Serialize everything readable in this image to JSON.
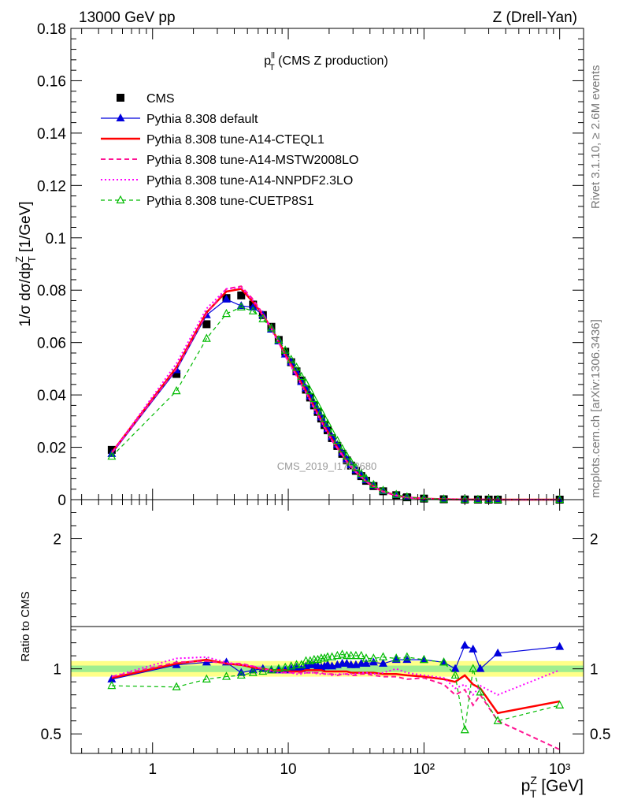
{
  "header": {
    "left": "13000 GeV pp",
    "right": "Z (Drell-Yan)"
  },
  "side_labels": {
    "rivet": "Rivet 3.1.10, ≥ 2.6M events",
    "mcplots": "mcplots.cern.ch [arXiv:1306.3436]"
  },
  "watermark": "CMS_2019_I1753680",
  "chart_data": [
    {
      "type": "line",
      "panel": "main",
      "title_main": "p",
      "title_sup": "ll",
      "title_sub": "T",
      "title_rest": " (CMS Z production)",
      "xscale": "log",
      "xlim": [
        0.25,
        1500
      ],
      "ylim": [
        0,
        0.18
      ],
      "ylabel_prefix": "1/σ dσ/dp",
      "ylabel_sup": "Z",
      "ylabel_sub": "T",
      "ylabel_suffix": " [1/GeV]",
      "yticks": [
        "0",
        "0.02",
        "0.04",
        "0.06",
        "0.08",
        "0.1",
        "0.12",
        "0.14",
        "0.16",
        "0.18"
      ],
      "legend_position": "top-left",
      "x": [
        0.5,
        1.5,
        2.5,
        3.5,
        4.5,
        5.5,
        6.5,
        7.5,
        8.5,
        9.5,
        10.5,
        11.5,
        12.5,
        13.5,
        14.5,
        15.5,
        16.5,
        17.5,
        18.5,
        19.5,
        21,
        23,
        25,
        27,
        29,
        31.5,
        34.5,
        37.5,
        42.5,
        50,
        62.5,
        75,
        100,
        140,
        200,
        250,
        300,
        350,
        1000
      ],
      "series": [
        {
          "name": "CMS",
          "style": "cms",
          "color": "#000000",
          "values": [
            0.019,
            0.048,
            0.067,
            0.077,
            0.078,
            0.0745,
            0.0705,
            0.066,
            0.061,
            0.0565,
            0.0525,
            0.049,
            0.0455,
            0.042,
            0.039,
            0.036,
            0.0335,
            0.031,
            0.0285,
            0.0265,
            0.0235,
            0.0205,
            0.0175,
            0.015,
            0.013,
            0.011,
            0.009,
            0.0072,
            0.0052,
            0.0032,
            0.0017,
            0.0009,
            0.0004,
            0.00015,
            6e-05,
            4e-05,
            2e-05,
            1e-05,
            5e-06
          ]
        },
        {
          "name": "Pythia 8.308 default",
          "style": "default",
          "color": "#0000dd",
          "values": [
            0.0175,
            0.0495,
            0.0705,
            0.0765,
            0.074,
            0.0735,
            0.0705,
            0.065,
            0.0605,
            0.0555,
            0.0525,
            0.049,
            0.045,
            0.0425,
            0.0395,
            0.0365,
            0.034,
            0.0315,
            0.029,
            0.027,
            0.024,
            0.021,
            0.018,
            0.0155,
            0.0133,
            0.0113,
            0.0093,
            0.0075,
            0.0054,
            0.0033,
            0.0018,
            0.00095,
            0.00042,
            0.00016,
            7e-05,
            4e-05,
            2e-05,
            1e-05,
            6e-06
          ]
        },
        {
          "name": "Pythia 8.308 tune-A14-CTEQL1",
          "style": "cteq",
          "color": "#ff0000",
          "values": [
            0.018,
            0.0505,
            0.0715,
            0.0795,
            0.0805,
            0.0755,
            0.0705,
            0.0655,
            0.0605,
            0.0555,
            0.0515,
            0.048,
            0.0445,
            0.0415,
            0.0385,
            0.0355,
            0.033,
            0.0305,
            0.028,
            0.026,
            0.023,
            0.02,
            0.0172,
            0.0147,
            0.0127,
            0.0107,
            0.0088,
            0.007,
            0.005,
            0.0031,
            0.0016,
            0.00085,
            0.00037,
            0.00014,
            5e-05,
            4e-05,
            1.7e-05,
            7e-06,
            4e-06
          ]
        },
        {
          "name": "Pythia 8.308 tune-A14-MSTW2008LO",
          "style": "mstw",
          "color": "#ff1493",
          "values": [
            0.0178,
            0.05,
            0.071,
            0.0805,
            0.0815,
            0.0765,
            0.071,
            0.0655,
            0.06,
            0.055,
            0.051,
            0.0475,
            0.044,
            0.041,
            0.038,
            0.035,
            0.0325,
            0.03,
            0.0275,
            0.0255,
            0.0225,
            0.0195,
            0.017,
            0.0145,
            0.0125,
            0.0105,
            0.0086,
            0.0069,
            0.0049,
            0.003,
            0.0016,
            0.00082,
            0.00036,
            0.00013,
            5e-05,
            3.5e-05,
            1.5e-05,
            6e-06,
            3e-06
          ]
        },
        {
          "name": "Pythia 8.308 tune-A14-NNPDF2.3LO",
          "style": "nnpdf",
          "color": "#ff00ff",
          "values": [
            0.0178,
            0.052,
            0.073,
            0.0805,
            0.081,
            0.076,
            0.0705,
            0.065,
            0.0598,
            0.0548,
            0.0508,
            0.0472,
            0.0437,
            0.0408,
            0.0378,
            0.0348,
            0.0322,
            0.0298,
            0.0274,
            0.0254,
            0.0224,
            0.0196,
            0.0169,
            0.0145,
            0.0125,
            0.0106,
            0.0087,
            0.007,
            0.005,
            0.0031,
            0.0017,
            0.00087,
            0.00038,
            0.00014,
            5e-05,
            3.5e-05,
            1.6e-05,
            8e-06,
            5e-06
          ]
        },
        {
          "name": "Pythia 8.308 tune-CUETP8S1",
          "style": "cuetp",
          "color": "#00bb00",
          "values": [
            0.0165,
            0.0415,
            0.0615,
            0.071,
            0.0735,
            0.072,
            0.069,
            0.0655,
            0.061,
            0.057,
            0.0535,
            0.0505,
            0.047,
            0.0445,
            0.0415,
            0.0385,
            0.036,
            0.0335,
            0.031,
            0.029,
            0.0257,
            0.0225,
            0.0194,
            0.0166,
            0.0143,
            0.0121,
            0.0099,
            0.008,
            0.0057,
            0.0035,
            0.0019,
            0.00098,
            0.00043,
            0.00016,
            6e-05,
            4e-05,
            1.5e-05,
            6e-06,
            4e-06
          ]
        }
      ]
    },
    {
      "type": "line",
      "panel": "ratio",
      "ylabel": "Ratio to CMS",
      "xlabel_main": "p",
      "xlabel_sup": "Z",
      "xlabel_sub": "T",
      "xlabel_suffix": " [GeV]",
      "xscale": "log",
      "xlim": [
        0.25,
        1500
      ],
      "ylim": [
        0.35,
        2.3
      ],
      "yticks": [
        "0.5",
        "1",
        "2"
      ],
      "xticks": [
        "1",
        "10",
        "10²",
        "10³"
      ],
      "x": [
        0.5,
        1.5,
        2.5,
        3.5,
        4.5,
        5.5,
        6.5,
        7.5,
        8.5,
        9.5,
        10.5,
        11.5,
        12.5,
        13.5,
        14.5,
        15.5,
        16.5,
        17.5,
        18.5,
        19.5,
        21,
        23,
        25,
        27,
        29,
        31.5,
        34.5,
        37.5,
        42.5,
        50,
        62.5,
        75,
        100,
        140,
        170,
        200,
        230,
        260,
        350,
        1000
      ],
      "band": {
        "inner_color": "#a0ee90",
        "outer_color": "#ffff88",
        "inner": 0.025,
        "outer": 0.06
      },
      "series": [
        {
          "name": "Pythia 8.308 default",
          "style": "default",
          "color": "#0000dd",
          "values": [
            0.92,
            1.03,
            1.05,
            1.05,
            0.97,
            0.99,
            1.0,
            0.99,
            0.99,
            0.99,
            1.0,
            1.01,
            1.0,
            1.02,
            1.03,
            1.03,
            1.02,
            1.01,
            1.02,
            1.03,
            1.02,
            1.03,
            1.04,
            1.04,
            1.03,
            1.03,
            1.04,
            1.04,
            1.05,
            1.04,
            1.07,
            1.07,
            1.07,
            1.05,
            1.0,
            1.18,
            1.15,
            1.0,
            1.12,
            1.17
          ]
        },
        {
          "name": "Pythia 8.308 tune-A14-CTEQL1",
          "style": "cteq",
          "color": "#ff0000",
          "values": [
            0.93,
            1.04,
            1.07,
            1.04,
            1.03,
            1.01,
            1.0,
            0.99,
            0.99,
            0.99,
            0.98,
            0.98,
            0.98,
            0.99,
            0.99,
            0.99,
            0.99,
            0.99,
            0.98,
            0.98,
            0.98,
            0.98,
            0.98,
            0.98,
            0.97,
            0.97,
            0.97,
            0.97,
            0.97,
            0.96,
            0.96,
            0.95,
            0.94,
            0.92,
            0.9,
            0.95,
            0.88,
            0.85,
            0.66,
            0.75
          ]
        },
        {
          "name": "Pythia 8.308 tune-A14-MSTW2008LO",
          "style": "mstw",
          "color": "#ff1493",
          "values": [
            0.94,
            1.05,
            1.06,
            1.04,
            1.04,
            1.02,
            1.0,
            0.99,
            0.98,
            0.97,
            0.97,
            0.97,
            0.97,
            0.97,
            0.97,
            0.97,
            0.97,
            0.97,
            0.96,
            0.96,
            0.96,
            0.95,
            0.96,
            0.96,
            0.95,
            0.95,
            0.96,
            0.96,
            0.95,
            0.94,
            0.94,
            0.92,
            0.93,
            0.88,
            0.8,
            0.84,
            0.72,
            0.8,
            0.6,
            0.38
          ]
        },
        {
          "name": "Pythia 8.308 tune-A14-NNPDF2.3LO",
          "style": "nnpdf",
          "color": "#ff00ff",
          "values": [
            0.94,
            1.08,
            1.09,
            1.05,
            1.03,
            1.02,
            1.0,
            0.98,
            0.97,
            0.97,
            0.97,
            0.96,
            0.96,
            0.97,
            0.97,
            0.97,
            0.96,
            0.96,
            0.96,
            0.96,
            0.95,
            0.96,
            0.96,
            0.96,
            0.96,
            0.96,
            0.97,
            0.97,
            0.96,
            0.97,
            1.0,
            0.97,
            0.95,
            0.93,
            0.85,
            0.88,
            0.8,
            0.87,
            0.8,
            0.99
          ]
        },
        {
          "name": "Pythia 8.308 tune-CUETP8S1",
          "style": "cuetp",
          "color": "#00bb00",
          "values": [
            0.87,
            0.86,
            0.92,
            0.94,
            0.95,
            0.97,
            0.98,
            0.99,
            1.0,
            1.01,
            1.02,
            1.03,
            1.03,
            1.06,
            1.06,
            1.07,
            1.07,
            1.08,
            1.08,
            1.09,
            1.09,
            1.1,
            1.11,
            1.1,
            1.1,
            1.1,
            1.1,
            1.08,
            1.08,
            1.09,
            1.08,
            1.09,
            1.07,
            1.05,
            0.95,
            0.53,
            1.0,
            0.82,
            0.6,
            0.72
          ]
        }
      ]
    }
  ]
}
